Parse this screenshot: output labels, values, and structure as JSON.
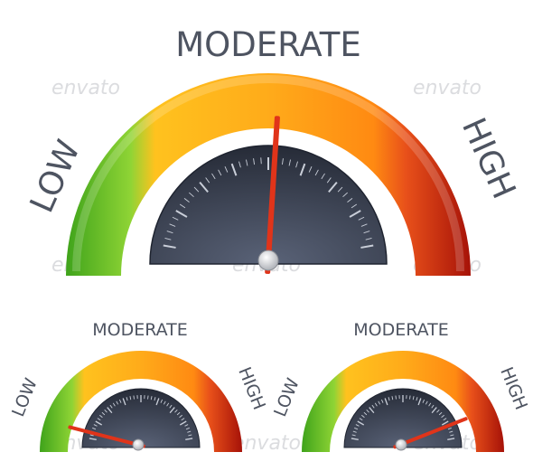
{
  "gauges": [
    {
      "id": "large",
      "labels": {
        "low": "LOW",
        "moderate": "MODERATE",
        "high": "HIGH"
      },
      "needle_fraction": 0.52
    },
    {
      "id": "small-left",
      "labels": {
        "low": "LOW",
        "moderate": "MODERATE",
        "high": "HIGH"
      },
      "needle_fraction": 0.08
    },
    {
      "id": "small-right",
      "labels": {
        "low": "LOW",
        "moderate": "MODERATE",
        "high": "HIGH"
      },
      "needle_fraction": 0.88
    }
  ],
  "watermark": {
    "text": "envato"
  },
  "colors": {
    "low": "#6cc52c",
    "moderate": "#ffb21e",
    "high": "#cf2e15",
    "dial": "#3d4455",
    "needle": "#e0341a",
    "label": "#4e5461"
  }
}
